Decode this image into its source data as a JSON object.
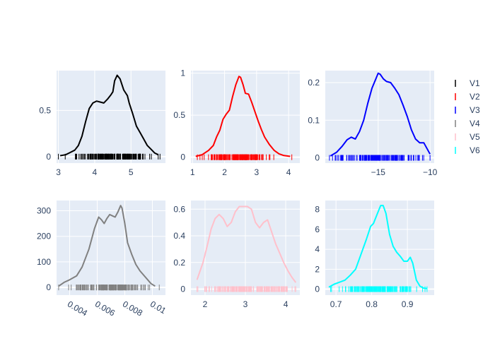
{
  "chart_data": {
    "type": "line",
    "subtype": "kernel density estimate with rug marks, 6 subplots (2 rows x 3 cols)",
    "grid": true,
    "legend": {
      "placement": "right",
      "entries": [
        {
          "name": "V1",
          "color": "#000000"
        },
        {
          "name": "V2",
          "color": "#ff0000"
        },
        {
          "name": "V3",
          "color": "#0000ff"
        },
        {
          "name": "V4",
          "color": "#808080"
        },
        {
          "name": "V5",
          "color": "#ffc0cb"
        },
        {
          "name": "V6",
          "color": "#00ffff"
        }
      ]
    },
    "subplots": [
      {
        "name": "V1",
        "color": "#000000",
        "xlim": [
          2.95,
          5.95
        ],
        "ylim": [
          -0.07,
          0.93
        ],
        "xticks": [
          {
            "v": 3,
            "label": "3"
          },
          {
            "v": 4,
            "label": "4"
          },
          {
            "v": 5,
            "label": "5"
          }
        ],
        "yticks": [
          {
            "v": 0,
            "label": "0"
          },
          {
            "v": 0.5,
            "label": "0.5"
          }
        ],
        "xtick_angle": 0,
        "kde": [
          [
            3.05,
            0.01
          ],
          [
            3.2,
            0.02
          ],
          [
            3.3,
            0.04
          ],
          [
            3.45,
            0.07
          ],
          [
            3.55,
            0.12
          ],
          [
            3.65,
            0.22
          ],
          [
            3.75,
            0.38
          ],
          [
            3.85,
            0.52
          ],
          [
            3.95,
            0.58
          ],
          [
            4.05,
            0.6
          ],
          [
            4.15,
            0.59
          ],
          [
            4.25,
            0.58
          ],
          [
            4.35,
            0.62
          ],
          [
            4.45,
            0.67
          ],
          [
            4.5,
            0.7
          ],
          [
            4.55,
            0.82
          ],
          [
            4.62,
            0.88
          ],
          [
            4.7,
            0.84
          ],
          [
            4.8,
            0.72
          ],
          [
            4.9,
            0.66
          ],
          [
            4.95,
            0.58
          ],
          [
            5.05,
            0.46
          ],
          [
            5.15,
            0.33
          ],
          [
            5.25,
            0.26
          ],
          [
            5.35,
            0.19
          ],
          [
            5.45,
            0.12
          ],
          [
            5.55,
            0.08
          ],
          [
            5.65,
            0.04
          ],
          [
            5.75,
            0.02
          ]
        ],
        "rug": {
          "min": 3.0,
          "max": 5.8,
          "density_center": 4.5,
          "spread": 0.5
        }
      },
      {
        "name": "V2",
        "color": "#ff0000",
        "xlim": [
          0.95,
          4.35
        ],
        "ylim": [
          -0.07,
          1.03
        ],
        "xticks": [
          {
            "v": 1,
            "label": "1"
          },
          {
            "v": 2,
            "label": "2"
          },
          {
            "v": 3,
            "label": "3"
          },
          {
            "v": 4,
            "label": "4"
          }
        ],
        "yticks": [
          {
            "v": 0,
            "label": "0"
          },
          {
            "v": 0.5,
            "label": "0.5"
          },
          {
            "v": 1,
            "label": "1"
          }
        ],
        "xtick_angle": 0,
        "kde": [
          [
            1.1,
            0.01
          ],
          [
            1.3,
            0.03
          ],
          [
            1.5,
            0.08
          ],
          [
            1.65,
            0.14
          ],
          [
            1.75,
            0.24
          ],
          [
            1.85,
            0.32
          ],
          [
            1.95,
            0.45
          ],
          [
            2.05,
            0.51
          ],
          [
            2.15,
            0.56
          ],
          [
            2.25,
            0.72
          ],
          [
            2.35,
            0.86
          ],
          [
            2.45,
            0.96
          ],
          [
            2.5,
            0.95
          ],
          [
            2.58,
            0.86
          ],
          [
            2.65,
            0.76
          ],
          [
            2.75,
            0.75
          ],
          [
            2.85,
            0.65
          ],
          [
            2.95,
            0.54
          ],
          [
            3.05,
            0.43
          ],
          [
            3.15,
            0.33
          ],
          [
            3.25,
            0.24
          ],
          [
            3.4,
            0.15
          ],
          [
            3.55,
            0.08
          ],
          [
            3.7,
            0.04
          ],
          [
            3.85,
            0.02
          ],
          [
            4.05,
            0.01
          ]
        ],
        "rug": {
          "min": 1.15,
          "max": 4.1,
          "density_center": 2.45,
          "spread": 0.5
        }
      },
      {
        "name": "V3",
        "color": "#0000ff",
        "xlim": [
          -20.1,
          -9.6
        ],
        "ylim": [
          -0.014,
          0.232
        ],
        "xticks": [
          {
            "v": -15,
            "label": "−15"
          },
          {
            "v": -10,
            "label": "−10"
          }
        ],
        "yticks": [
          {
            "v": 0,
            "label": "0"
          },
          {
            "v": 0.1,
            "label": "0.1"
          },
          {
            "v": 0.2,
            "label": "0.2"
          }
        ],
        "xtick_angle": 0,
        "kde": [
          [
            -19.6,
            0.005
          ],
          [
            -19.0,
            0.015
          ],
          [
            -18.5,
            0.03
          ],
          [
            -18.0,
            0.048
          ],
          [
            -17.6,
            0.055
          ],
          [
            -17.2,
            0.05
          ],
          [
            -16.8,
            0.07
          ],
          [
            -16.4,
            0.1
          ],
          [
            -16.0,
            0.145
          ],
          [
            -15.6,
            0.185
          ],
          [
            -15.3,
            0.205
          ],
          [
            -15.0,
            0.225
          ],
          [
            -14.8,
            0.222
          ],
          [
            -14.5,
            0.21
          ],
          [
            -14.2,
            0.203
          ],
          [
            -13.8,
            0.2
          ],
          [
            -13.4,
            0.185
          ],
          [
            -13.0,
            0.168
          ],
          [
            -12.6,
            0.14
          ],
          [
            -12.2,
            0.11
          ],
          [
            -11.8,
            0.075
          ],
          [
            -11.4,
            0.05
          ],
          [
            -11.0,
            0.04
          ],
          [
            -10.6,
            0.04
          ],
          [
            -10.3,
            0.025
          ],
          [
            -10.0,
            0.01
          ]
        ],
        "rug": {
          "min": -19.7,
          "max": -10.0,
          "density_center": -14.8,
          "spread": 1.8
        }
      },
      {
        "name": "V4",
        "color": "#808080",
        "xlim": [
          0.00305,
          0.01095
        ],
        "ylim": [
          -30,
          340
        ],
        "xticks": [
          {
            "v": 0.004,
            "label": "0.004"
          },
          {
            "v": 0.006,
            "label": "0.006"
          },
          {
            "v": 0.008,
            "label": "0.008"
          },
          {
            "v": 0.01,
            "label": "0.01"
          }
        ],
        "yticks": [
          {
            "v": 0,
            "label": "0"
          },
          {
            "v": 100,
            "label": "100"
          },
          {
            "v": 200,
            "label": "200"
          },
          {
            "v": 300,
            "label": "300"
          }
        ],
        "xtick_angle": 30,
        "kde": [
          [
            0.0032,
            5
          ],
          [
            0.0036,
            20
          ],
          [
            0.004,
            30
          ],
          [
            0.0045,
            45
          ],
          [
            0.0049,
            80
          ],
          [
            0.0054,
            150
          ],
          [
            0.0058,
            230
          ],
          [
            0.0061,
            275
          ],
          [
            0.0063,
            265
          ],
          [
            0.0065,
            250
          ],
          [
            0.0067,
            270
          ],
          [
            0.0069,
            285
          ],
          [
            0.0071,
            280
          ],
          [
            0.0073,
            275
          ],
          [
            0.0075,
            295
          ],
          [
            0.0077,
            320
          ],
          [
            0.0078,
            310
          ],
          [
            0.008,
            250
          ],
          [
            0.0082,
            175
          ],
          [
            0.0085,
            130
          ],
          [
            0.0088,
            90
          ],
          [
            0.0091,
            65
          ],
          [
            0.0095,
            40
          ],
          [
            0.0099,
            15
          ],
          [
            0.0102,
            5
          ]
        ],
        "rug": {
          "min": 0.0032,
          "max": 0.0105,
          "density_center": 0.007,
          "spread": 0.0012
        }
      },
      {
        "name": "V5",
        "color": "#ffc0cb",
        "xlim": [
          1.65,
          4.35
        ],
        "ylim": [
          -0.045,
          0.665
        ],
        "xticks": [
          {
            "v": 2,
            "label": "2"
          },
          {
            "v": 3,
            "label": "3"
          },
          {
            "v": 4,
            "label": "4"
          }
        ],
        "yticks": [
          {
            "v": 0,
            "label": "0"
          },
          {
            "v": 0.2,
            "label": "0.2"
          },
          {
            "v": 0.4,
            "label": "0.4"
          },
          {
            "v": 0.6,
            "label": "0.6"
          }
        ],
        "xtick_angle": 0,
        "kde": [
          [
            1.8,
            0.07
          ],
          [
            1.95,
            0.2
          ],
          [
            2.05,
            0.32
          ],
          [
            2.15,
            0.45
          ],
          [
            2.25,
            0.53
          ],
          [
            2.35,
            0.56
          ],
          [
            2.45,
            0.53
          ],
          [
            2.55,
            0.47
          ],
          [
            2.65,
            0.5
          ],
          [
            2.75,
            0.58
          ],
          [
            2.85,
            0.62
          ],
          [
            2.95,
            0.62
          ],
          [
            3.05,
            0.62
          ],
          [
            3.15,
            0.6
          ],
          [
            3.25,
            0.5
          ],
          [
            3.35,
            0.46
          ],
          [
            3.45,
            0.5
          ],
          [
            3.55,
            0.52
          ],
          [
            3.65,
            0.43
          ],
          [
            3.75,
            0.34
          ],
          [
            3.85,
            0.27
          ],
          [
            3.95,
            0.2
          ],
          [
            4.05,
            0.14
          ],
          [
            4.15,
            0.09
          ],
          [
            4.25,
            0.05
          ]
        ],
        "rug": {
          "min": 1.8,
          "max": 4.25,
          "density_center": 3.0,
          "spread": 0.65
        }
      },
      {
        "name": "V6",
        "color": "#00ffff",
        "xlim": [
          0.67,
          0.975
        ],
        "ylim": [
          -0.6,
          8.9
        ],
        "xticks": [
          {
            "v": 0.7,
            "label": "0.7"
          },
          {
            "v": 0.8,
            "label": "0.8"
          },
          {
            "v": 0.9,
            "label": "0.9"
          }
        ],
        "yticks": [
          {
            "v": 0,
            "label": "0"
          },
          {
            "v": 2,
            "label": "2"
          },
          {
            "v": 4,
            "label": "4"
          },
          {
            "v": 6,
            "label": "6"
          },
          {
            "v": 8,
            "label": "8"
          }
        ],
        "xtick_angle": 0,
        "kde": [
          [
            0.68,
            0.2
          ],
          [
            0.695,
            0.5
          ],
          [
            0.71,
            0.7
          ],
          [
            0.725,
            0.9
          ],
          [
            0.74,
            1.4
          ],
          [
            0.755,
            2.0
          ],
          [
            0.77,
            3.5
          ],
          [
            0.785,
            5.0
          ],
          [
            0.797,
            6.3
          ],
          [
            0.805,
            6.6
          ],
          [
            0.815,
            7.5
          ],
          [
            0.825,
            8.4
          ],
          [
            0.832,
            8.4
          ],
          [
            0.84,
            7.6
          ],
          [
            0.85,
            5.5
          ],
          [
            0.86,
            4.3
          ],
          [
            0.87,
            3.7
          ],
          [
            0.88,
            3.3
          ],
          [
            0.89,
            2.8
          ],
          [
            0.9,
            2.8
          ],
          [
            0.908,
            3.2
          ],
          [
            0.915,
            2.6
          ],
          [
            0.925,
            0.9
          ],
          [
            0.935,
            0.3
          ],
          [
            0.945,
            0.1
          ],
          [
            0.955,
            0.05
          ]
        ],
        "rug": {
          "min": 0.685,
          "max": 0.955,
          "density_center": 0.83,
          "spread": 0.05
        }
      }
    ]
  }
}
